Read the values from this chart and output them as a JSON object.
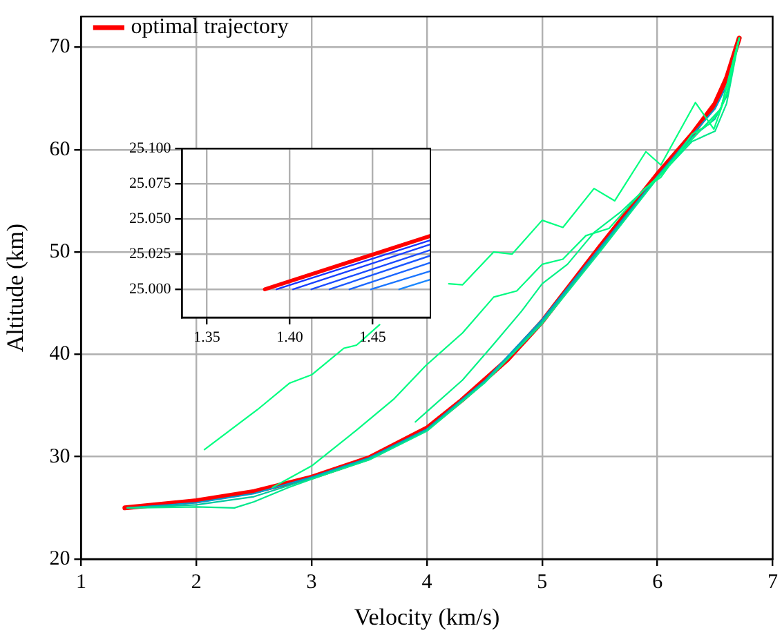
{
  "chart_data": [
    {
      "type": "line",
      "xlabel": "Velocity (km/s)",
      "ylabel": "Altitude (km)",
      "xlim": [
        1,
        7
      ],
      "xticks": [
        1,
        2,
        3,
        4,
        5,
        6,
        7
      ],
      "ylim": [
        20,
        73
      ],
      "yticks": [
        20,
        30,
        40,
        50,
        60,
        70
      ],
      "grid": true,
      "legend": "top left",
      "series": [
        {
          "color": "#00ff80",
          "x": [
            2.07,
            2.53,
            2.81,
            3.0,
            3.28,
            3.39,
            3.59,
            3.99,
            4.19,
            4.31,
            4.58,
            4.74,
            5.0,
            5.18,
            5.45,
            5.63,
            5.9,
            6.03,
            6.33,
            6.49,
            6.6,
            6.71
          ],
          "values": [
            30.7,
            34.6,
            37.2,
            38.0,
            40.6,
            40.9,
            42.9,
            null,
            46.9,
            46.8,
            50.0,
            49.8,
            53.1,
            52.4,
            56.2,
            55.0,
            59.8,
            58.5,
            64.6,
            62.0,
            65.5,
            70.9
          ]
        },
        {
          "color": "#00fa82",
          "x": [
            2.66,
            3.0,
            3.39,
            3.71,
            3.99,
            4.31,
            4.58,
            4.78,
            5.0,
            5.18,
            5.38,
            5.58,
            5.89,
            6.03,
            6.3,
            6.45,
            6.55,
            6.71
          ],
          "values": [
            27.0,
            29.1,
            32.6,
            35.6,
            38.9,
            42.1,
            45.6,
            46.2,
            48.8,
            49.3,
            51.6,
            52.3,
            56.2,
            57.3,
            61.5,
            62.5,
            64.0,
            70.9
          ]
        },
        {
          "color": "#00f286",
          "x": [
            3.9,
            3.99,
            4.31,
            4.58,
            4.82,
            5.0,
            5.22,
            5.45,
            5.69,
            6.0,
            6.3,
            6.45,
            6.55,
            6.71
          ],
          "values": [
            33.4,
            34.3,
            37.5,
            41.0,
            44.2,
            46.9,
            48.8,
            51.9,
            54.0,
            57.3,
            61.0,
            62.8,
            64.0,
            70.9
          ]
        },
        {
          "color": "#00e88c",
          "x": [
            1.4,
            2.0,
            2.33,
            2.5,
            2.8,
            3.0,
            3.5,
            4.0,
            4.5,
            5.0,
            5.5,
            6.0,
            6.3,
            6.5,
            6.6,
            6.71
          ],
          "values": [
            25.0,
            25.1,
            25.0,
            25.6,
            27.0,
            27.8,
            29.7,
            32.5,
            37.2,
            43.0,
            50.0,
            57.2,
            60.8,
            61.8,
            64.5,
            70.9
          ]
        },
        {
          "color": "#00c8a0",
          "x": [
            1.4,
            2.0,
            2.5,
            3.0,
            3.5,
            4.0,
            4.5,
            5.0,
            5.5,
            6.0,
            6.3,
            6.5,
            6.6,
            6.71
          ],
          "values": [
            25.0,
            25.3,
            26.1,
            27.9,
            29.8,
            32.6,
            37.3,
            43.2,
            50.2,
            57.3,
            61.2,
            63.0,
            65.2,
            70.9
          ]
        },
        {
          "color": "#0099cc",
          "x": [
            1.4,
            2.0,
            2.5,
            3.0,
            3.5,
            4.0,
            4.5,
            5.0,
            5.5,
            6.0,
            6.3,
            6.5,
            6.6,
            6.71
          ],
          "values": [
            25.0,
            25.5,
            26.4,
            28.0,
            29.9,
            32.7,
            37.4,
            43.4,
            50.4,
            57.4,
            61.4,
            64.0,
            66.2,
            70.9
          ]
        },
        {
          "name": "optimal trajectory",
          "color": "#ff0000",
          "x": [
            1.38,
            2.0,
            2.5,
            3.0,
            3.5,
            4.0,
            4.3,
            4.7,
            5.0,
            5.5,
            6.0,
            6.3,
            6.5,
            6.6,
            6.71
          ],
          "values": [
            25.0,
            25.7,
            26.6,
            28.0,
            29.9,
            32.8,
            35.5,
            39.5,
            43.2,
            50.5,
            57.6,
            61.5,
            64.5,
            67.0,
            70.9
          ]
        }
      ]
    },
    {
      "type": "line",
      "xlim": [
        1.335,
        1.485
      ],
      "xticks": [
        {
          "value": 1.35,
          "label": "1.35"
        },
        {
          "value": 1.4,
          "label": "1.40"
        },
        {
          "value": 1.45,
          "label": "1.45"
        }
      ],
      "ylim": [
        24.98,
        25.1
      ],
      "yticks": [
        {
          "value": 25,
          "label": "25.000"
        },
        {
          "value": 25.025,
          "label": "25.025"
        },
        {
          "value": 25.05,
          "label": "25.050"
        },
        {
          "value": 25.075,
          "label": "25.075"
        },
        {
          "value": 25.1,
          "label": "25.100"
        }
      ],
      "grid": true,
      "series": [
        {
          "color": "#1a33ff",
          "x": [
            1.392,
            1.485
          ],
          "values": [
            25.0,
            25.035
          ]
        },
        {
          "color": "#1a40ff",
          "x": [
            1.402,
            1.485
          ],
          "values": [
            25.0,
            25.032
          ]
        },
        {
          "color": "#1a4cff",
          "x": [
            1.413,
            1.485
          ],
          "values": [
            25.0,
            25.028
          ]
        },
        {
          "color": "#1a58ff",
          "x": [
            1.424,
            1.485
          ],
          "values": [
            25.0,
            25.024
          ]
        },
        {
          "color": "#1a66ff",
          "x": [
            1.436,
            1.485
          ],
          "values": [
            25.0,
            25.019
          ]
        },
        {
          "color": "#1a75ff",
          "x": [
            1.449,
            1.485
          ],
          "values": [
            25.0,
            25.013
          ]
        },
        {
          "color": "#1a88ff",
          "x": [
            1.466,
            1.485
          ],
          "values": [
            25.0,
            25.007
          ]
        },
        {
          "color": "#ff0000",
          "x": [
            1.385,
            1.485
          ],
          "values": [
            25.0,
            25.038
          ]
        }
      ]
    }
  ]
}
